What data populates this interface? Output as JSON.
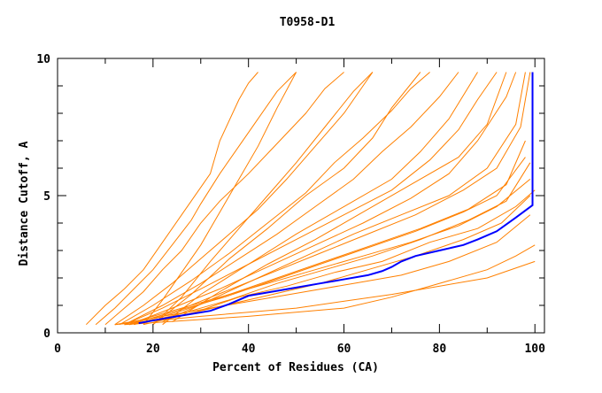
{
  "chart_data": {
    "type": "line",
    "title": "T0958-D1",
    "xlabel": "Percent of Residues (CA)",
    "ylabel": "Distance Cutoff, A",
    "xlim": [
      0,
      102
    ],
    "ylim": [
      0,
      10
    ],
    "xticks": [
      0,
      20,
      40,
      60,
      80,
      100
    ],
    "yticks": [
      0,
      5,
      10
    ],
    "grid": false,
    "colors": {
      "models": "#ff8000",
      "highlight": "#0000ff"
    },
    "highlight": {
      "x": [
        17,
        20,
        25,
        32,
        36,
        40,
        45,
        50,
        55,
        60,
        65,
        68,
        70,
        72,
        75,
        80,
        85,
        88,
        92,
        96,
        99.5,
        99.5
      ],
      "y": [
        0.35,
        0.45,
        0.6,
        0.8,
        1.05,
        1.35,
        1.5,
        1.65,
        1.8,
        1.95,
        2.1,
        2.25,
        2.4,
        2.6,
        2.8,
        3.0,
        3.2,
        3.4,
        3.7,
        4.2,
        4.65,
        9.5
      ]
    },
    "series": [
      {
        "x": [
          6,
          10,
          14,
          18,
          22,
          26,
          28,
          32,
          34,
          38,
          40,
          42
        ],
        "y": [
          0.3,
          1.0,
          1.6,
          2.3,
          3.3,
          4.3,
          4.8,
          5.8,
          7.0,
          8.5,
          9.1,
          9.5
        ]
      },
      {
        "x": [
          8,
          12,
          16,
          20,
          24,
          28,
          30,
          34,
          38,
          42,
          46,
          50
        ],
        "y": [
          0.3,
          0.9,
          1.6,
          2.3,
          3.2,
          4.1,
          4.7,
          5.8,
          6.8,
          7.8,
          8.8,
          9.5
        ]
      },
      {
        "x": [
          10,
          14,
          18,
          22,
          26,
          30,
          34,
          40,
          46,
          52,
          56,
          60
        ],
        "y": [
          0.3,
          0.9,
          1.5,
          2.3,
          3.0,
          4.0,
          4.8,
          5.8,
          6.9,
          8.0,
          8.9,
          9.5
        ]
      },
      {
        "x": [
          12,
          18,
          24,
          30,
          36,
          42,
          48,
          54,
          60,
          64,
          66
        ],
        "y": [
          0.3,
          1.0,
          1.8,
          2.7,
          3.6,
          4.5,
          5.6,
          6.8,
          8.0,
          9.0,
          9.5
        ]
      },
      {
        "x": [
          13,
          20,
          28,
          36,
          44,
          52,
          58,
          64,
          70,
          74,
          78
        ],
        "y": [
          0.3,
          1.0,
          1.9,
          2.9,
          4.0,
          5.1,
          6.2,
          7.1,
          8.1,
          8.9,
          9.5
        ]
      },
      {
        "x": [
          14,
          22,
          30,
          38,
          46,
          54,
          62,
          68,
          74,
          80,
          84
        ],
        "y": [
          0.3,
          1.0,
          1.8,
          2.7,
          3.6,
          4.6,
          5.6,
          6.6,
          7.5,
          8.6,
          9.5
        ]
      },
      {
        "x": [
          14,
          22,
          30,
          40,
          50,
          60,
          70,
          78,
          84,
          88,
          92
        ],
        "y": [
          0.3,
          0.9,
          1.6,
          2.5,
          3.4,
          4.3,
          5.2,
          6.3,
          7.4,
          8.5,
          9.5
        ]
      },
      {
        "x": [
          15,
          24,
          34,
          44,
          54,
          64,
          74,
          82,
          88,
          94,
          96
        ],
        "y": [
          0.3,
          0.9,
          1.6,
          2.4,
          3.2,
          4.0,
          4.9,
          5.8,
          7.0,
          8.6,
          9.5
        ]
      },
      {
        "x": [
          15,
          25,
          35,
          45,
          55,
          65,
          75,
          85,
          92,
          97,
          99
        ],
        "y": [
          0.3,
          0.8,
          1.5,
          2.2,
          2.9,
          3.6,
          4.3,
          5.2,
          6.0,
          7.5,
          9.5
        ]
      },
      {
        "x": [
          16,
          26,
          36,
          46,
          56,
          66,
          76,
          86,
          94,
          98
        ],
        "y": [
          0.3,
          0.8,
          1.4,
          2.0,
          2.6,
          3.2,
          3.8,
          4.5,
          5.4,
          7.0
        ]
      },
      {
        "x": [
          16,
          26,
          36,
          46,
          56,
          66,
          76,
          86,
          94,
          99
        ],
        "y": [
          0.3,
          0.7,
          1.2,
          1.8,
          2.3,
          2.8,
          3.4,
          4.1,
          4.8,
          6.2
        ]
      },
      {
        "x": [
          15,
          25,
          35,
          45,
          55,
          65,
          75,
          85,
          92,
          98
        ],
        "y": [
          0.3,
          0.8,
          1.3,
          1.9,
          2.5,
          3.1,
          3.7,
          4.4,
          5.0,
          6.4
        ]
      },
      {
        "x": [
          14,
          24,
          34,
          44,
          54,
          64,
          74,
          84,
          92,
          99
        ],
        "y": [
          0.3,
          0.8,
          1.3,
          1.8,
          2.3,
          2.8,
          3.3,
          3.9,
          4.6,
          5.6
        ]
      },
      {
        "x": [
          15,
          25,
          35,
          45,
          55,
          65,
          75,
          85,
          93,
          99
        ],
        "y": [
          0.3,
          0.6,
          1.0,
          1.4,
          1.8,
          2.3,
          2.8,
          3.4,
          4.0,
          5.0
        ]
      },
      {
        "x": [
          18,
          28,
          38,
          48,
          58,
          68,
          78,
          88,
          96,
          100
        ],
        "y": [
          0.3,
          0.7,
          1.3,
          1.7,
          2.2,
          2.6,
          3.3,
          3.8,
          4.6,
          5.2
        ]
      },
      {
        "x": [
          12,
          22,
          32,
          42,
          52,
          62,
          72,
          82,
          92,
          99
        ],
        "y": [
          0.3,
          0.6,
          0.9,
          1.2,
          1.5,
          1.8,
          2.1,
          2.6,
          3.3,
          4.3
        ]
      },
      {
        "x": [
          12,
          30,
          50,
          70,
          90,
          100
        ],
        "y": [
          0.3,
          0.6,
          0.9,
          1.4,
          2.0,
          2.6
        ]
      },
      {
        "x": [
          14,
          40,
          60,
          70,
          90,
          96,
          100
        ],
        "y": [
          0.3,
          0.6,
          0.9,
          1.3,
          2.3,
          2.8,
          3.2
        ]
      },
      {
        "x": [
          18,
          22,
          26,
          30,
          34,
          38,
          42,
          46,
          50
        ],
        "y": [
          0.3,
          1.2,
          2.2,
          3.2,
          4.4,
          5.6,
          6.8,
          8.2,
          9.5
        ]
      },
      {
        "x": [
          20,
          26,
          32,
          38,
          44,
          50,
          56,
          62,
          66
        ],
        "y": [
          0.3,
          1.3,
          2.6,
          3.8,
          5.0,
          6.2,
          7.5,
          8.8,
          9.5
        ]
      },
      {
        "x": [
          20,
          28,
          36,
          44,
          52,
          60,
          66,
          70,
          76
        ],
        "y": [
          0.3,
          1.4,
          2.7,
          3.8,
          5.0,
          6.0,
          7.1,
          8.2,
          9.5
        ]
      },
      {
        "x": [
          22,
          30,
          40,
          50,
          60,
          70,
          76,
          82,
          88
        ],
        "y": [
          0.3,
          1.4,
          2.5,
          3.6,
          4.6,
          5.6,
          6.6,
          7.8,
          9.5
        ]
      },
      {
        "x": [
          24,
          34,
          44,
          54,
          64,
          74,
          84,
          90,
          94
        ],
        "y": [
          0.4,
          1.5,
          2.5,
          3.4,
          4.4,
          5.4,
          6.4,
          7.6,
          9.5
        ]
      },
      {
        "x": [
          22,
          32,
          42,
          52,
          62,
          72,
          82,
          90,
          96,
          98
        ],
        "y": [
          0.4,
          1.2,
          2.0,
          2.8,
          3.6,
          4.3,
          5.0,
          6.0,
          7.6,
          9.5
        ]
      }
    ]
  }
}
